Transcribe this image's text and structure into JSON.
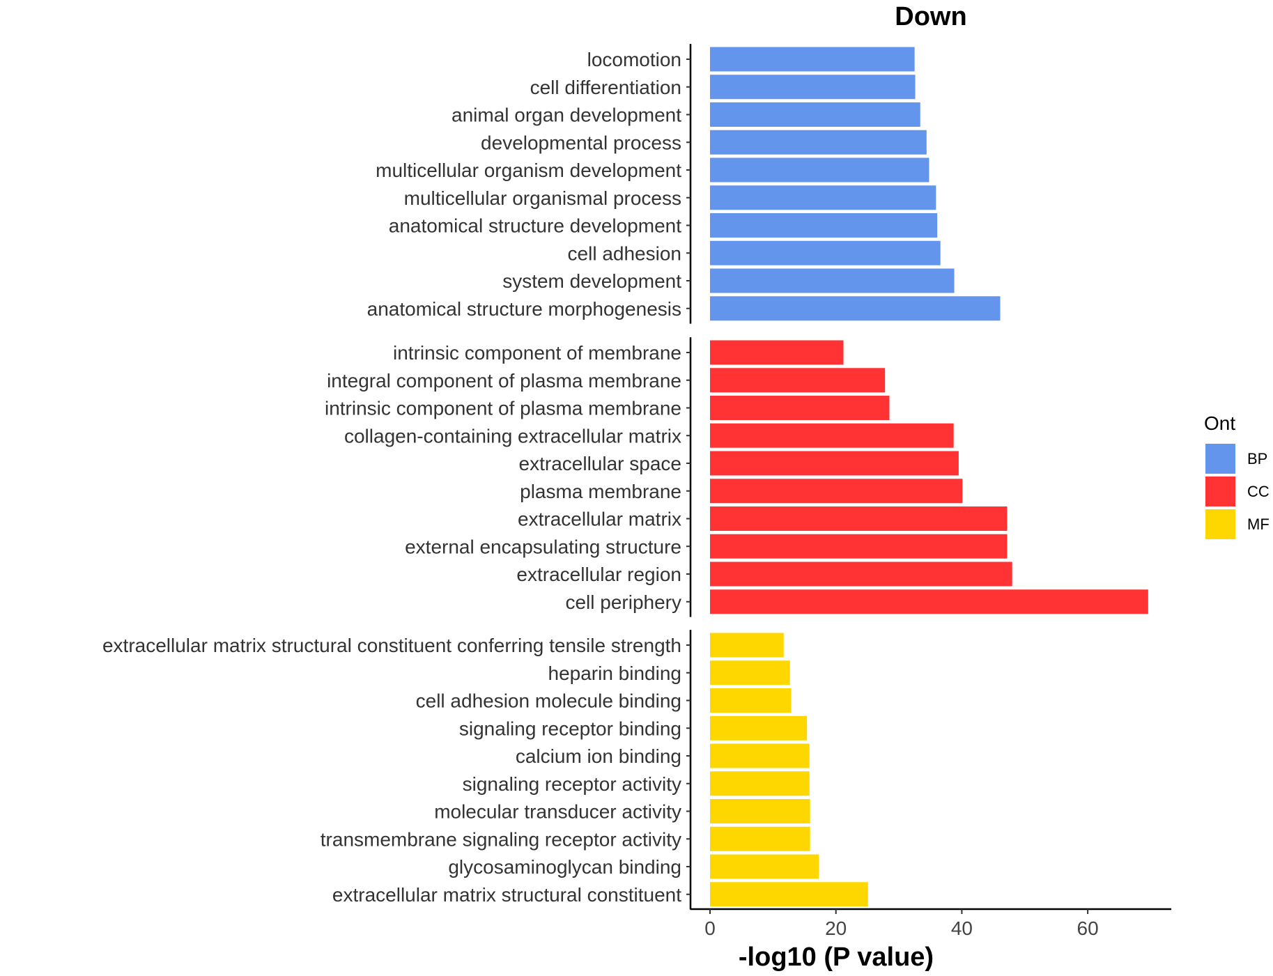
{
  "chart_data": {
    "type": "bar",
    "orientation": "horizontal",
    "title": "Down",
    "xlabel": "-log10 (P value)",
    "ylabel": "",
    "xlim": [
      0,
      72
    ],
    "xticks": [
      0,
      20,
      40,
      60
    ],
    "grid": false,
    "legend": {
      "title": "Ont",
      "placement": "right",
      "entries": [
        {
          "name": "BP",
          "color": "#6495ED"
        },
        {
          "name": "CC",
          "color": "#FF3333"
        },
        {
          "name": "MF",
          "color": "#FFD700"
        }
      ]
    },
    "panels": [
      {
        "ont": "BP",
        "categories": [
          "locomotion",
          "cell differentiation",
          "animal organ development",
          "developmental process",
          "multicellular organism development",
          "multicellular organismal process",
          "anatomical structure development",
          "cell adhesion",
          "system development",
          "anatomical structure morphogenesis"
        ],
        "values": [
          32.5,
          32.6,
          33.4,
          34.4,
          34.8,
          35.9,
          36.1,
          36.6,
          38.8,
          46.1
        ]
      },
      {
        "ont": "CC",
        "categories": [
          "intrinsic component of membrane",
          "integral component of plasma membrane",
          "intrinsic component of plasma membrane",
          "collagen-containing extracellular matrix",
          "extracellular space",
          "plasma membrane",
          "extracellular matrix",
          "external encapsulating structure",
          "extracellular region",
          "cell periphery"
        ],
        "values": [
          21.2,
          27.8,
          28.5,
          38.7,
          39.5,
          40.1,
          47.2,
          47.2,
          48.0,
          69.6
        ]
      },
      {
        "ont": "MF",
        "categories": [
          "extracellular matrix structural constituent conferring tensile strength",
          "heparin binding",
          "cell adhesion molecule binding",
          "signaling receptor binding",
          "calcium ion binding",
          "signaling receptor activity",
          "molecular transducer activity",
          "transmembrane signaling receptor activity",
          "glycosaminoglycan binding",
          "extracellular matrix structural constituent"
        ],
        "values": [
          11.7,
          12.7,
          12.9,
          15.4,
          15.8,
          15.8,
          15.9,
          15.9,
          17.3,
          25.1
        ]
      }
    ]
  }
}
